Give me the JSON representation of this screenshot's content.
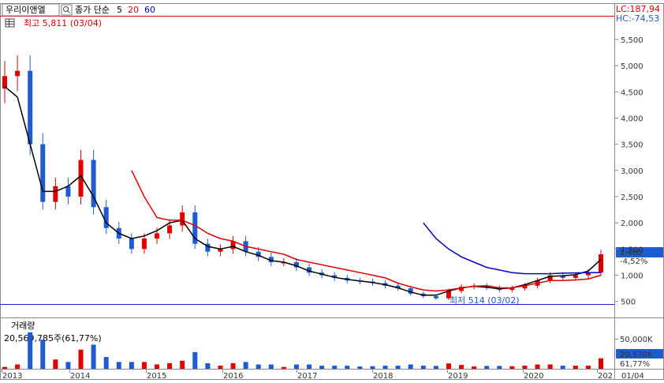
{
  "header": {
    "stock_name": "우리이앤엘",
    "ma_label": "종가 단순",
    "ma_periods": [
      "5",
      "20",
      "60"
    ],
    "ma_colors": [
      "#000000",
      "#e00000",
      "#0000c8"
    ],
    "lc_text": "LC:187,94",
    "hc_text": "HC:-74,53"
  },
  "price_panel": {
    "high_marker": "최고 5,811 (03/04)",
    "low_marker": "최저 514 (03/02)",
    "current_price": "1,480",
    "current_change": "-4,52%",
    "hline_value": 514
  },
  "volume_panel": {
    "title": "거래량",
    "subtitle": "20,569,785주(61,77%)",
    "scale_label": "50,000K",
    "current_volume": "20,570K",
    "current_pct": "61,77%"
  },
  "x_axis": {
    "labels": [
      "2013",
      "2014",
      "2015",
      "2016",
      "2017",
      "2018",
      "2019",
      "2020",
      "202",
      "01/04"
    ]
  },
  "colors": {
    "up": "#e00000",
    "down": "#1e5ad2",
    "axis": "#8a8a8a",
    "current_bg": "#1e5ad2"
  },
  "chart_data": {
    "type": "candlestick",
    "price_axis": {
      "ticks": [
        500,
        1000,
        1500,
        2000,
        2500,
        3000,
        3500,
        4000,
        4500,
        5000,
        5500
      ],
      "tick_labels": [
        "500",
        "1,000",
        "1,500",
        "2,000",
        "2,500",
        "3,000",
        "3,500",
        "4,000",
        "4,500",
        "5,000",
        "5,500"
      ],
      "ylim": [
        300,
        5800
      ]
    },
    "x": [
      "2013-01",
      "2013-03",
      "2013-05",
      "2013-07",
      "2013-09",
      "2013-11",
      "2014-01",
      "2014-03",
      "2014-05",
      "2014-07",
      "2014-09",
      "2014-11",
      "2015-01",
      "2015-03",
      "2015-05",
      "2015-07",
      "2015-09",
      "2015-11",
      "2016-01",
      "2016-03",
      "2016-05",
      "2016-07",
      "2016-09",
      "2016-11",
      "2017-01",
      "2017-03",
      "2017-05",
      "2017-07",
      "2017-09",
      "2017-11",
      "2018-01",
      "2018-03",
      "2018-05",
      "2018-07",
      "2018-09",
      "2018-11",
      "2019-01",
      "2019-03",
      "2019-05",
      "2019-07",
      "2019-09",
      "2019-11",
      "2020-01",
      "2020-03",
      "2020-05",
      "2020-07",
      "2020-09",
      "2020-11"
    ],
    "series": [
      {
        "name": "close",
        "values": [
          4800,
          4900,
          3500,
          2400,
          2700,
          2500,
          3200,
          2300,
          1900,
          1700,
          1500,
          1700,
          1800,
          1950,
          2200,
          1600,
          1450,
          1500,
          1650,
          1450,
          1350,
          1250,
          1250,
          1150,
          1050,
          1000,
          950,
          900,
          880,
          850,
          800,
          750,
          650,
          600,
          560,
          700,
          780,
          800,
          760,
          720,
          750,
          800,
          900,
          1000,
          950,
          1000,
          1050,
          1400
        ]
      },
      {
        "name": "5",
        "values": [
          4600,
          4400,
          3500,
          2600,
          2600,
          2700,
          2900,
          2500,
          2000,
          1800,
          1700,
          1750,
          1850,
          2000,
          2050,
          1700,
          1550,
          1500,
          1550,
          1450,
          1380,
          1280,
          1250,
          1180,
          1080,
          1020,
          960,
          920,
          890,
          860,
          820,
          760,
          680,
          620,
          620,
          700,
          760,
          790,
          770,
          740,
          760,
          820,
          900,
          980,
          990,
          1010,
          1080,
          1300
        ]
      },
      {
        "name": "20",
        "values": [
          null,
          null,
          null,
          null,
          null,
          null,
          null,
          null,
          null,
          null,
          3000,
          2500,
          2100,
          2050,
          2050,
          1950,
          1800,
          1700,
          1650,
          1550,
          1500,
          1450,
          1400,
          1300,
          1250,
          1200,
          1150,
          1100,
          1050,
          1000,
          950,
          850,
          780,
          720,
          700,
          720,
          760,
          790,
          800,
          760,
          760,
          800,
          850,
          900,
          900,
          910,
          930,
          1000
        ]
      },
      {
        "name": "60",
        "values": [
          null,
          null,
          null,
          null,
          null,
          null,
          null,
          null,
          null,
          null,
          null,
          null,
          null,
          null,
          null,
          null,
          null,
          null,
          null,
          null,
          null,
          null,
          null,
          null,
          null,
          null,
          null,
          null,
          null,
          null,
          null,
          null,
          null,
          2000,
          1700,
          1500,
          1350,
          1250,
          1150,
          1100,
          1050,
          1030,
          1030,
          1030,
          1040,
          1045,
          1050,
          1050
        ]
      }
    ],
    "volume": {
      "ylim": [
        0,
        60000
      ],
      "scale_label": "50,000K"
    }
  }
}
